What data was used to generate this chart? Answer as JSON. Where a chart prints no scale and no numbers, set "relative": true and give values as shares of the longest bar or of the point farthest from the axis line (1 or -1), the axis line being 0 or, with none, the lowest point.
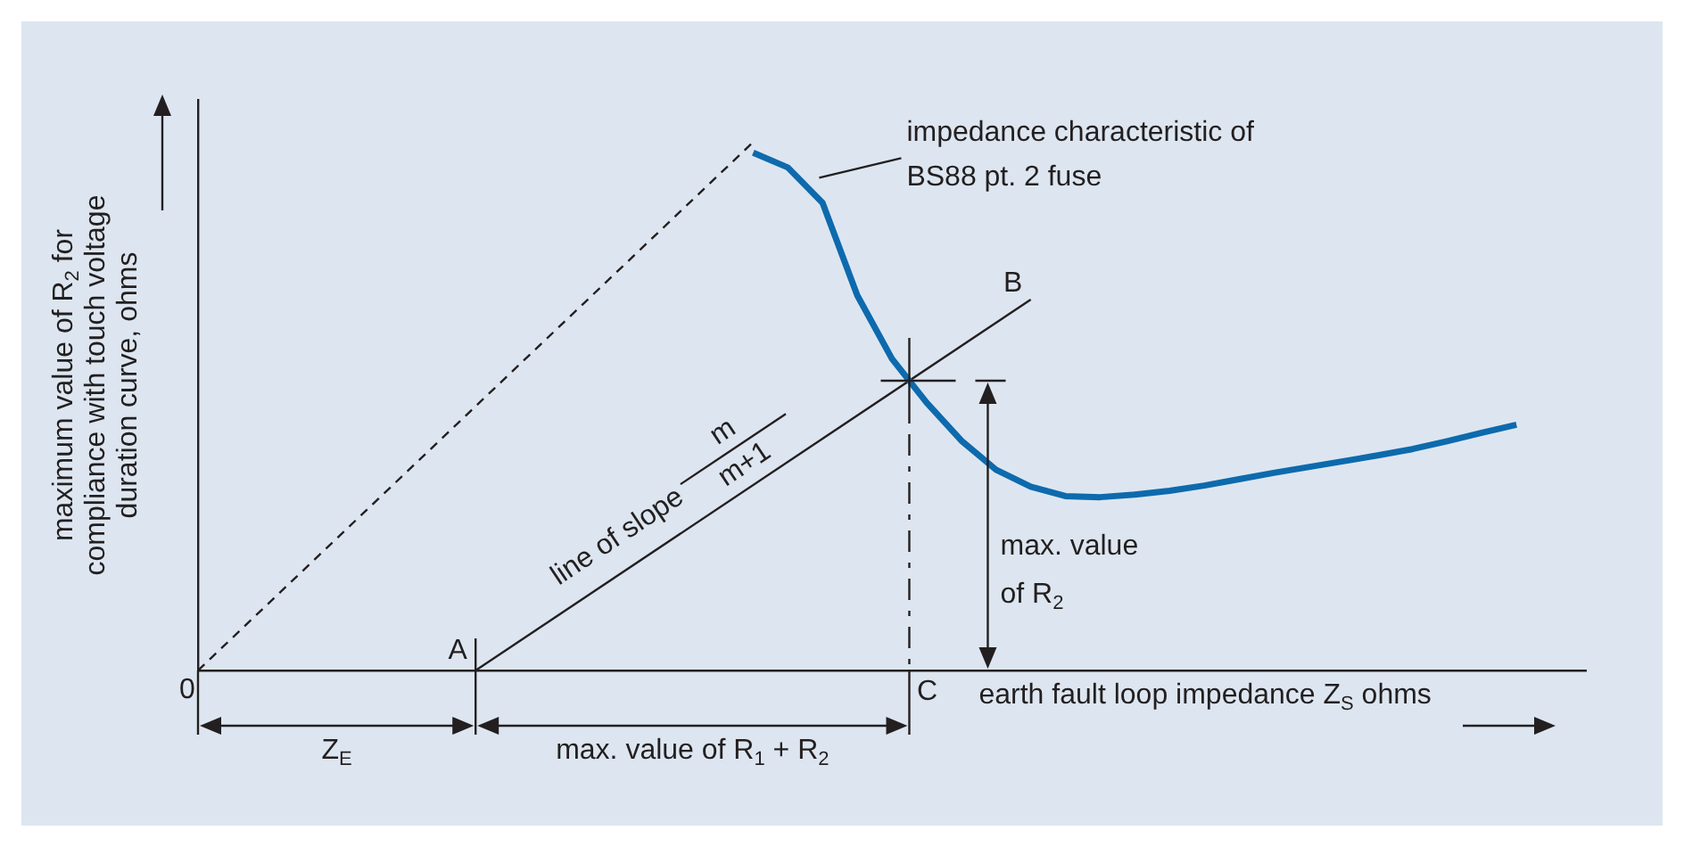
{
  "chart_data": {
    "type": "line",
    "relative": true,
    "xlabel": "earth fault loop impedance Z$_{S}$ ohms",
    "ylabel": "maximum value of R$_{2}$ for compliance with touch voltage duration curve, ohms",
    "categories": [
      null,
      null,
      null,
      null,
      null,
      null,
      null,
      null,
      null,
      null,
      null,
      null,
      null,
      null,
      null,
      null,
      null,
      null,
      null,
      null,
      null,
      null,
      null,
      null,
      null,
      null,
      null,
      null,
      null,
      null,
      null,
      null,
      null,
      null,
      null,
      null,
      null,
      null,
      null,
      null,
      null
    ],
    "series": [
      {
        "color": "#231f20",
        "line_style": "dashed",
        "values": [
          0,
          null,
          null,
          null,
          null,
          null,
          null,
          null,
          null,
          null,
          null,
          null,
          null,
          null,
          null,
          null,
          1,
          null,
          null,
          null,
          null,
          null,
          null,
          null,
          null,
          null,
          null,
          null,
          null,
          null,
          null,
          null,
          null,
          null,
          null,
          null,
          null,
          null,
          null,
          null,
          null
        ]
      },
      {
        "color": "#0d6aad",
        "values": [
          null,
          null,
          null,
          null,
          null,
          null,
          null,
          null,
          null,
          null,
          null,
          null,
          null,
          null,
          null,
          null,
          0.98,
          0.952,
          0.885,
          0.71,
          0.59,
          0.507,
          0.435,
          0.38,
          0.348,
          0.33,
          0.328,
          0.333,
          0.34,
          0.35,
          0.362,
          0.374,
          0.385,
          0.396,
          0.407,
          0.419,
          0.434,
          0.45,
          0.465,
          null,
          null
        ]
      },
      {
        "color": "#231f20",
        "values": [
          null,
          null,
          null,
          null,
          null,
          null,
          null,
          null,
          0,
          null,
          null,
          null,
          null,
          null,
          null,
          null,
          null,
          null,
          null,
          null,
          null,
          null,
          null,
          null,
          0.702,
          null,
          null,
          null,
          null,
          null,
          null,
          null,
          null,
          null,
          null,
          null,
          null,
          null,
          null,
          null,
          null
        ]
      }
    ],
    "annotations": [
      "impedance characteristic of BS88 pt. 2 fuse",
      "line of slope",
      "m",
      "m+1",
      "A",
      "B",
      "C",
      "0",
      "max. value of R$_{2}$",
      "Z$_{E}$",
      "max. value of R$_{1}$ + R$_{2}$"
    ]
  }
}
